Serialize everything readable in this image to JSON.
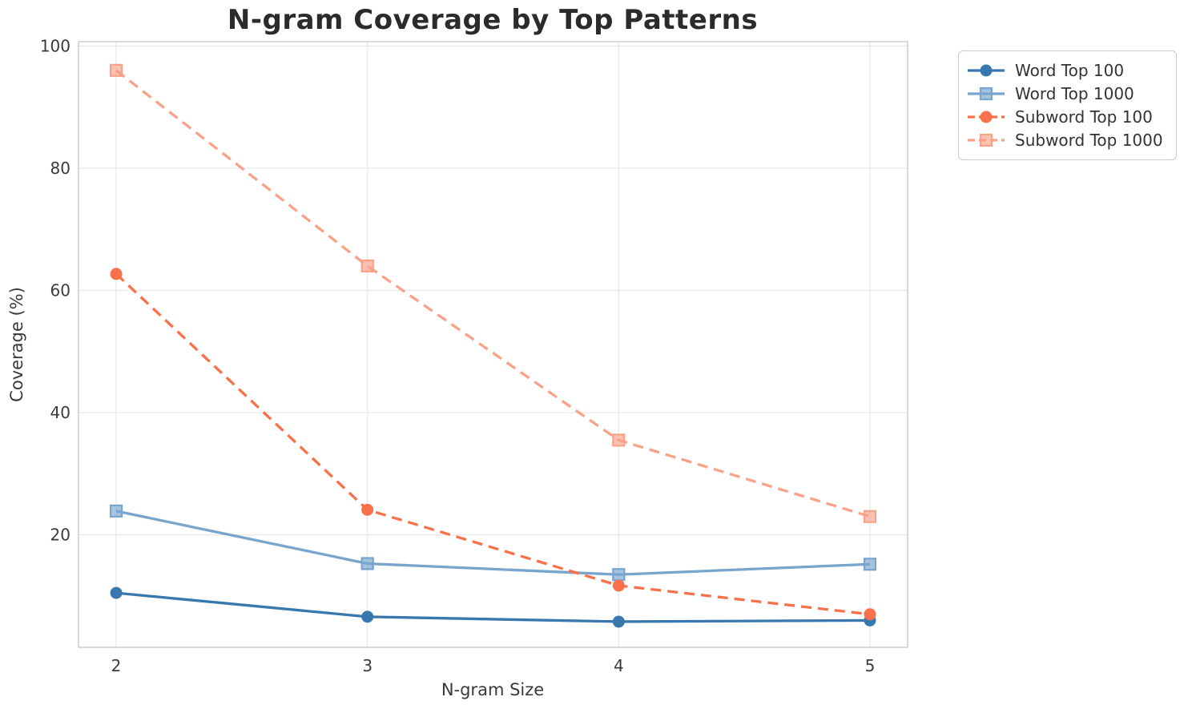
{
  "title": "N-gram Coverage by Top Patterns",
  "chart_data": {
    "type": "line",
    "title": "N-gram Coverage by Top Patterns",
    "xlabel": "N-gram Size",
    "ylabel": "Coverage (%)",
    "x": [
      2,
      3,
      4,
      5
    ],
    "x_ticks": [
      "2",
      "3",
      "4",
      "5"
    ],
    "y_ticks": [
      "20",
      "40",
      "60",
      "80",
      "100"
    ],
    "y_tick_values": [
      20,
      40,
      60,
      80,
      100
    ],
    "xlim": [
      1.85,
      5.15
    ],
    "ylim": [
      1.6,
      100.7
    ],
    "grid": true,
    "legend_position": "outside-top-right",
    "colors": {
      "grid": "#e7e7e7",
      "spine": "#c9c9c9",
      "text": "#3a3a3a",
      "title_text": "#2b2b2b"
    },
    "series": [
      {
        "name": "Word Top 100",
        "values": [
          10.5,
          6.6,
          5.8,
          6.0
        ],
        "color": "#3878ae",
        "line_style": "solid",
        "marker": "circle"
      },
      {
        "name": "Word Top 1000",
        "values": [
          23.9,
          15.3,
          13.5,
          15.2
        ],
        "color": "#78a5cd",
        "line_style": "solid",
        "marker": "square"
      },
      {
        "name": "Subword Top 100",
        "values": [
          62.7,
          24.1,
          11.7,
          7.0
        ],
        "color": "#f8714a",
        "line_style": "dashed",
        "marker": "circle"
      },
      {
        "name": "Subword Top 1000",
        "values": [
          96.0,
          64.0,
          35.5,
          23.0
        ],
        "color": "#f9a288",
        "line_style": "dashed",
        "marker": "square"
      }
    ]
  }
}
